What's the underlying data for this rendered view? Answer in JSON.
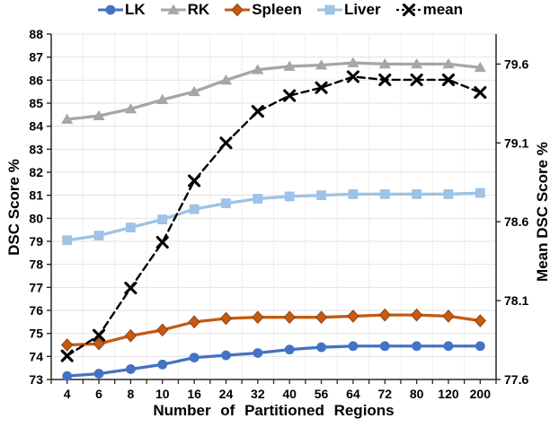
{
  "chart_data": {
    "type": "line",
    "categories": [
      "4",
      "6",
      "8",
      "10",
      "16",
      "24",
      "32",
      "40",
      "56",
      "64",
      "72",
      "80",
      "120",
      "200"
    ],
    "x_axis": {
      "title": "Number of Partitioned Regions"
    },
    "left_axis": {
      "title": "DSC Score %",
      "min": 73,
      "max": 88,
      "tick_step": 1,
      "ticks": [
        73,
        74,
        75,
        76,
        77,
        78,
        79,
        80,
        81,
        82,
        83,
        84,
        85,
        86,
        87,
        88
      ]
    },
    "right_axis": {
      "title": "Mean DSC Score %",
      "min": 77.6,
      "max": 79.79,
      "ticks": [
        77.6,
        78.1,
        78.6,
        79.1,
        79.6
      ]
    },
    "grid": true,
    "legend_position": "top",
    "series": [
      {
        "name": "LK",
        "axis": "left",
        "color": "#4472C4",
        "marker": "circle",
        "line": "solid",
        "values": [
          73.15,
          73.25,
          73.45,
          73.65,
          73.95,
          74.05,
          74.15,
          74.3,
          74.4,
          74.45,
          74.45,
          74.45,
          74.45,
          74.45
        ]
      },
      {
        "name": "RK",
        "axis": "left",
        "color": "#A6A6A6",
        "marker": "triangle",
        "line": "solid",
        "values": [
          84.3,
          84.45,
          84.75,
          85.15,
          85.5,
          86.0,
          86.45,
          86.6,
          86.65,
          86.75,
          86.7,
          86.7,
          86.7,
          86.55
        ]
      },
      {
        "name": "Spleen",
        "axis": "left",
        "color": "#C55A11",
        "marker": "diamond",
        "line": "solid",
        "values": [
          74.5,
          74.55,
          74.9,
          75.15,
          75.5,
          75.65,
          75.7,
          75.7,
          75.7,
          75.75,
          75.8,
          75.8,
          75.75,
          75.55
        ]
      },
      {
        "name": "Liver",
        "axis": "left",
        "color": "#9DC3E6",
        "marker": "square",
        "line": "solid",
        "values": [
          79.05,
          79.25,
          79.6,
          79.95,
          80.4,
          80.65,
          80.85,
          80.95,
          81.0,
          81.05,
          81.05,
          81.05,
          81.05,
          81.1
        ]
      },
      {
        "name": "mean",
        "axis": "right",
        "color": "#000000",
        "marker": "x",
        "line": "dashed",
        "values": [
          77.75,
          77.88,
          78.18,
          78.47,
          78.86,
          79.1,
          79.3,
          79.4,
          79.45,
          79.52,
          79.5,
          79.5,
          79.5,
          79.42
        ]
      }
    ]
  }
}
